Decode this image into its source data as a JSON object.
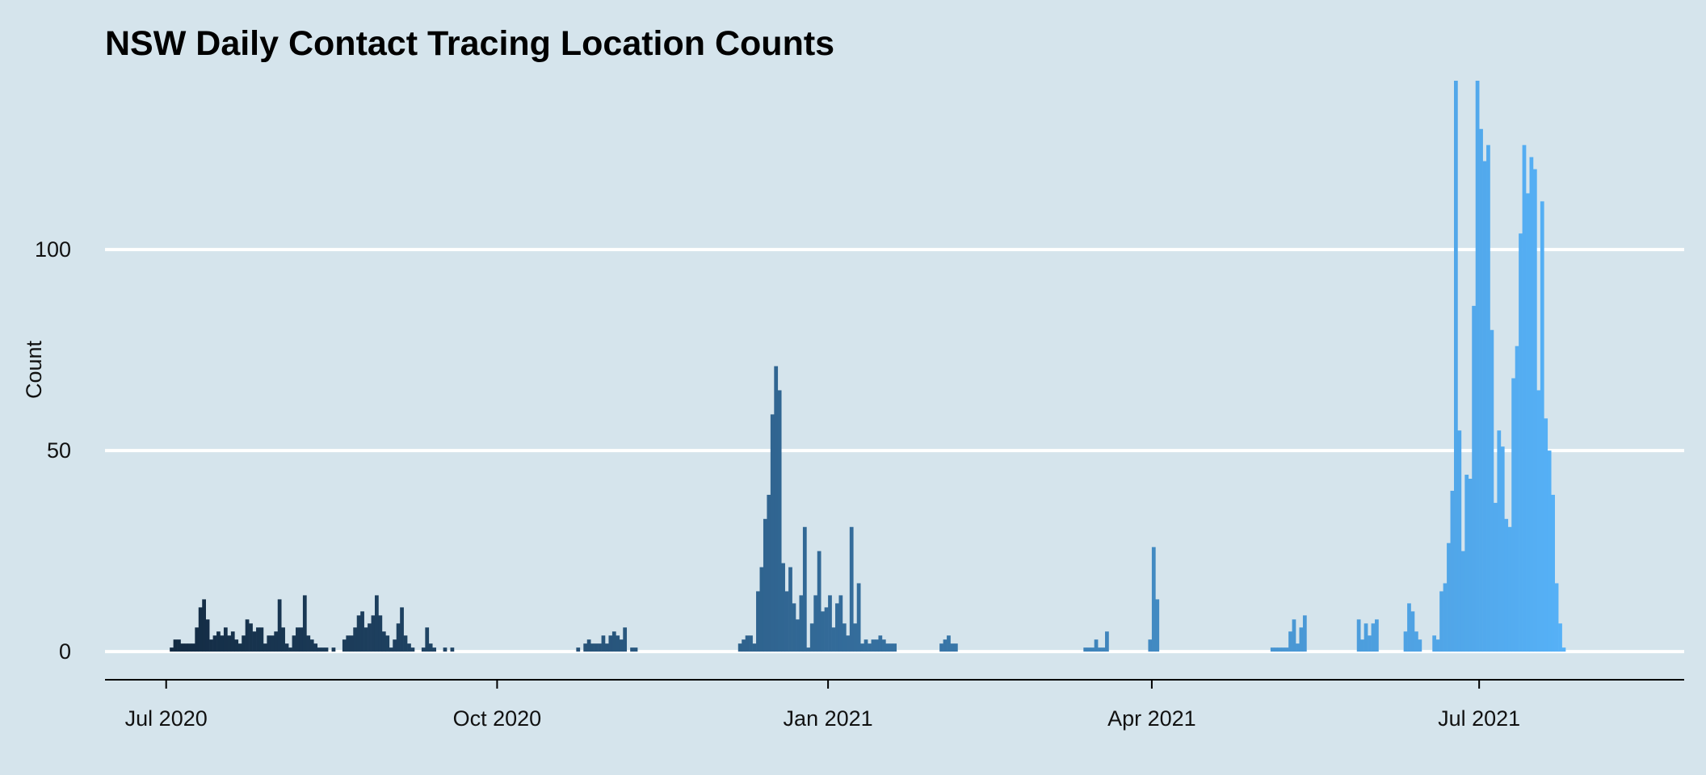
{
  "chart_data": {
    "type": "bar",
    "title": "NSW Daily Contact Tracing Location Counts",
    "xlabel": "",
    "ylabel": "Count",
    "x_ticks": [
      "Jul 2020",
      "Oct 2020",
      "Jan 2021",
      "Apr 2021",
      "Jul 2021"
    ],
    "y_ticks": [
      0,
      50,
      100
    ],
    "xlim": [
      "2020-06-14",
      "2021-08-27"
    ],
    "ylim": [
      -7,
      142
    ],
    "grid": "horizontal",
    "legend": "none",
    "color_gradient": [
      "#132b43",
      "#56b1f7"
    ],
    "bars": [
      [
        "2020-07-02",
        1
      ],
      [
        "2020-07-03",
        3
      ],
      [
        "2020-07-04",
        3
      ],
      [
        "2020-07-05",
        2
      ],
      [
        "2020-07-06",
        2
      ],
      [
        "2020-07-07",
        2
      ],
      [
        "2020-07-08",
        2
      ],
      [
        "2020-07-09",
        6
      ],
      [
        "2020-07-10",
        11
      ],
      [
        "2020-07-11",
        13
      ],
      [
        "2020-07-12",
        8
      ],
      [
        "2020-07-13",
        3
      ],
      [
        "2020-07-14",
        4
      ],
      [
        "2020-07-15",
        5
      ],
      [
        "2020-07-16",
        4
      ],
      [
        "2020-07-17",
        6
      ],
      [
        "2020-07-18",
        4
      ],
      [
        "2020-07-19",
        5
      ],
      [
        "2020-07-20",
        3
      ],
      [
        "2020-07-21",
        2
      ],
      [
        "2020-07-22",
        4
      ],
      [
        "2020-07-23",
        8
      ],
      [
        "2020-07-24",
        7
      ],
      [
        "2020-07-25",
        5
      ],
      [
        "2020-07-26",
        6
      ],
      [
        "2020-07-27",
        6
      ],
      [
        "2020-07-28",
        2
      ],
      [
        "2020-07-29",
        4
      ],
      [
        "2020-07-30",
        4
      ],
      [
        "2020-07-31",
        5
      ],
      [
        "2020-08-01",
        13
      ],
      [
        "2020-08-02",
        6
      ],
      [
        "2020-08-03",
        2
      ],
      [
        "2020-08-04",
        1
      ],
      [
        "2020-08-05",
        4
      ],
      [
        "2020-08-06",
        6
      ],
      [
        "2020-08-07",
        6
      ],
      [
        "2020-08-08",
        14
      ],
      [
        "2020-08-09",
        4
      ],
      [
        "2020-08-10",
        3
      ],
      [
        "2020-08-11",
        2
      ],
      [
        "2020-08-12",
        1
      ],
      [
        "2020-08-13",
        1
      ],
      [
        "2020-08-14",
        1
      ],
      [
        "2020-08-16",
        1
      ],
      [
        "2020-08-19",
        3
      ],
      [
        "2020-08-20",
        4
      ],
      [
        "2020-08-21",
        4
      ],
      [
        "2020-08-22",
        6
      ],
      [
        "2020-08-23",
        9
      ],
      [
        "2020-08-24",
        10
      ],
      [
        "2020-08-25",
        6
      ],
      [
        "2020-08-26",
        7
      ],
      [
        "2020-08-27",
        9
      ],
      [
        "2020-08-28",
        14
      ],
      [
        "2020-08-29",
        9
      ],
      [
        "2020-08-30",
        5
      ],
      [
        "2020-08-31",
        4
      ],
      [
        "2020-09-01",
        1
      ],
      [
        "2020-09-02",
        3
      ],
      [
        "2020-09-03",
        7
      ],
      [
        "2020-09-04",
        11
      ],
      [
        "2020-09-05",
        4
      ],
      [
        "2020-09-06",
        2
      ],
      [
        "2020-09-07",
        1
      ],
      [
        "2020-09-10",
        1
      ],
      [
        "2020-09-11",
        6
      ],
      [
        "2020-09-12",
        2
      ],
      [
        "2020-09-13",
        1
      ],
      [
        "2020-09-16",
        1
      ],
      [
        "2020-09-18",
        1
      ],
      [
        "2020-10-23",
        1
      ],
      [
        "2020-10-25",
        2
      ],
      [
        "2020-10-26",
        3
      ],
      [
        "2020-10-27",
        2
      ],
      [
        "2020-10-28",
        2
      ],
      [
        "2020-10-29",
        2
      ],
      [
        "2020-10-30",
        4
      ],
      [
        "2020-10-31",
        2
      ],
      [
        "2020-11-01",
        4
      ],
      [
        "2020-11-02",
        5
      ],
      [
        "2020-11-03",
        4
      ],
      [
        "2020-11-04",
        3
      ],
      [
        "2020-11-05",
        6
      ],
      [
        "2020-11-07",
        1
      ],
      [
        "2020-11-08",
        1
      ],
      [
        "2020-12-07",
        2
      ],
      [
        "2020-12-08",
        3
      ],
      [
        "2020-12-09",
        4
      ],
      [
        "2020-12-10",
        4
      ],
      [
        "2020-12-11",
        2
      ],
      [
        "2020-12-12",
        15
      ],
      [
        "2020-12-13",
        21
      ],
      [
        "2020-12-14",
        33
      ],
      [
        "2020-12-15",
        39
      ],
      [
        "2020-12-16",
        59
      ],
      [
        "2020-12-17",
        71
      ],
      [
        "2020-12-18",
        65
      ],
      [
        "2020-12-19",
        22
      ],
      [
        "2020-12-20",
        15
      ],
      [
        "2020-12-21",
        21
      ],
      [
        "2020-12-22",
        12
      ],
      [
        "2020-12-23",
        8
      ],
      [
        "2020-12-24",
        14
      ],
      [
        "2020-12-25",
        31
      ],
      [
        "2020-12-26",
        1
      ],
      [
        "2020-12-27",
        7
      ],
      [
        "2020-12-28",
        14
      ],
      [
        "2020-12-29",
        25
      ],
      [
        "2020-12-30",
        10
      ],
      [
        "2020-12-31",
        11
      ],
      [
        "2021-01-01",
        14
      ],
      [
        "2021-01-02",
        6
      ],
      [
        "2021-01-03",
        12
      ],
      [
        "2021-01-04",
        14
      ],
      [
        "2021-01-05",
        7
      ],
      [
        "2021-01-06",
        4
      ],
      [
        "2021-01-07",
        31
      ],
      [
        "2021-01-08",
        7
      ],
      [
        "2021-01-09",
        17
      ],
      [
        "2021-01-10",
        2
      ],
      [
        "2021-01-11",
        3
      ],
      [
        "2021-01-12",
        2
      ],
      [
        "2021-01-13",
        3
      ],
      [
        "2021-01-14",
        3
      ],
      [
        "2021-01-15",
        4
      ],
      [
        "2021-01-16",
        3
      ],
      [
        "2021-01-17",
        2
      ],
      [
        "2021-01-18",
        2
      ],
      [
        "2021-01-19",
        2
      ],
      [
        "2021-02-01",
        2
      ],
      [
        "2021-02-02",
        3
      ],
      [
        "2021-02-03",
        4
      ],
      [
        "2021-02-04",
        2
      ],
      [
        "2021-02-05",
        2
      ],
      [
        "2021-03-13",
        1
      ],
      [
        "2021-03-14",
        1
      ],
      [
        "2021-03-15",
        1
      ],
      [
        "2021-03-16",
        3
      ],
      [
        "2021-03-17",
        1
      ],
      [
        "2021-03-18",
        1
      ],
      [
        "2021-03-19",
        5
      ],
      [
        "2021-03-31",
        3
      ],
      [
        "2021-04-01",
        26
      ],
      [
        "2021-04-02",
        13
      ],
      [
        "2021-05-04",
        1
      ],
      [
        "2021-05-05",
        1
      ],
      [
        "2021-05-06",
        1
      ],
      [
        "2021-05-07",
        1
      ],
      [
        "2021-05-08",
        1
      ],
      [
        "2021-05-09",
        5
      ],
      [
        "2021-05-10",
        8
      ],
      [
        "2021-05-11",
        2
      ],
      [
        "2021-05-12",
        6
      ],
      [
        "2021-05-13",
        9
      ],
      [
        "2021-05-28",
        8
      ],
      [
        "2021-05-29",
        3
      ],
      [
        "2021-05-30",
        7
      ],
      [
        "2021-05-31",
        4
      ],
      [
        "2021-06-01",
        7
      ],
      [
        "2021-06-02",
        8
      ],
      [
        "2021-06-10",
        5
      ],
      [
        "2021-06-11",
        12
      ],
      [
        "2021-06-12",
        10
      ],
      [
        "2021-06-13",
        5
      ],
      [
        "2021-06-14",
        3
      ],
      [
        "2021-06-18",
        4
      ],
      [
        "2021-06-19",
        3
      ],
      [
        "2021-06-20",
        15
      ],
      [
        "2021-06-21",
        17
      ],
      [
        "2021-06-22",
        27
      ],
      [
        "2021-06-23",
        40
      ],
      [
        "2021-06-24",
        142
      ],
      [
        "2021-06-25",
        55
      ],
      [
        "2021-06-26",
        25
      ],
      [
        "2021-06-27",
        44
      ],
      [
        "2021-06-28",
        43
      ],
      [
        "2021-06-29",
        86
      ],
      [
        "2021-06-30",
        142
      ],
      [
        "2021-07-01",
        130
      ],
      [
        "2021-07-02",
        122
      ],
      [
        "2021-07-03",
        126
      ],
      [
        "2021-07-04",
        80
      ],
      [
        "2021-07-05",
        37
      ],
      [
        "2021-07-06",
        55
      ],
      [
        "2021-07-07",
        51
      ],
      [
        "2021-07-08",
        33
      ],
      [
        "2021-07-09",
        31
      ],
      [
        "2021-07-10",
        68
      ],
      [
        "2021-07-11",
        76
      ],
      [
        "2021-07-12",
        104
      ],
      [
        "2021-07-13",
        126
      ],
      [
        "2021-07-14",
        114
      ],
      [
        "2021-07-15",
        123
      ],
      [
        "2021-07-16",
        120
      ],
      [
        "2021-07-17",
        65
      ],
      [
        "2021-07-18",
        112
      ],
      [
        "2021-07-19",
        58
      ],
      [
        "2021-07-20",
        50
      ],
      [
        "2021-07-21",
        39
      ],
      [
        "2021-07-22",
        17
      ],
      [
        "2021-07-23",
        7
      ],
      [
        "2021-07-24",
        1
      ]
    ]
  }
}
